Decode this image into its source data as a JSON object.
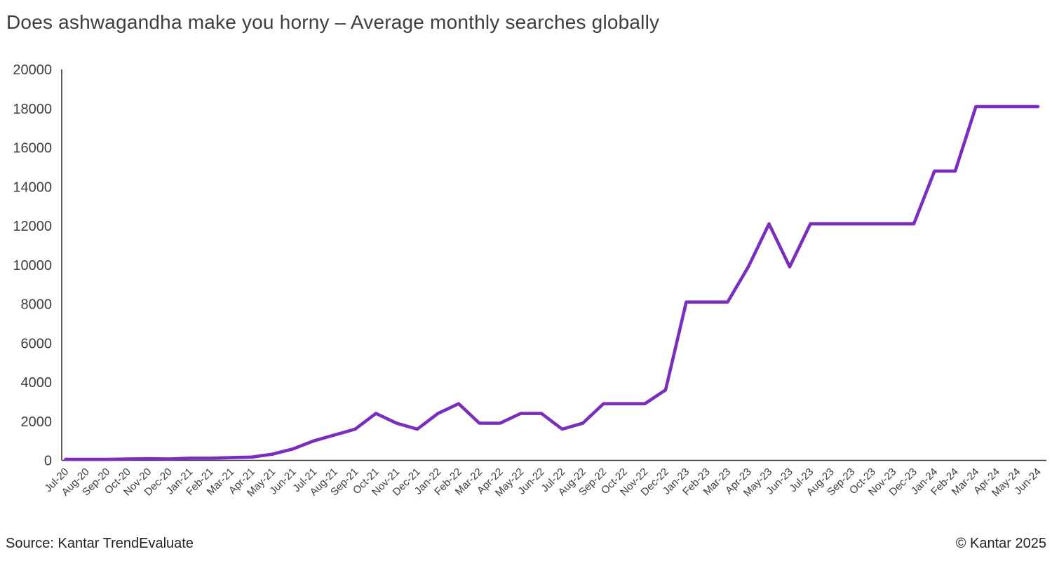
{
  "title": "Does ashwagandha make you horny – Average monthly searches globally",
  "footer": {
    "source": "Source: Kantar TrendEvaluate",
    "copyright": "© Kantar 2025"
  },
  "colors": {
    "line": "#7B2EBE",
    "axis": "#3a3a3c",
    "tick_text": "#3d3d3f",
    "title_text": "#3e3e40",
    "footer_text": "#232323",
    "background": "#ffffff"
  },
  "chart_data": {
    "type": "line",
    "title": "Does ashwagandha make you horny – Average monthly searches globally",
    "xlabel": "",
    "ylabel": "",
    "ylim": [
      0,
      20000
    ],
    "ytick_interval": 2000,
    "grid": false,
    "legend": false,
    "series_name": "Average monthly searches globally",
    "categories": [
      "Jul-20",
      "Aug-20",
      "Sep-20",
      "Oct-20",
      "Nov-20",
      "Dec-20",
      "Jan-21",
      "Feb-21",
      "Mar-21",
      "Apr-21",
      "May-21",
      "Jun-21",
      "Jul-21",
      "Aug-21",
      "Sep-21",
      "Oct-21",
      "Nov-21",
      "Dec-21",
      "Jan-22",
      "Feb-22",
      "Mar-22",
      "Apr-22",
      "May-22",
      "Jun-22",
      "Jul-22",
      "Aug-22",
      "Sep-22",
      "Oct-22",
      "Nov-22",
      "Dec-22",
      "Jan-23",
      "Feb-23",
      "Mar-23",
      "Apr-23",
      "May-23",
      "Jun-23",
      "Jul-23",
      "Aug-23",
      "Sep-23",
      "Oct-23",
      "Nov-23",
      "Dec-23",
      "Jan-24",
      "Feb-24",
      "Mar-24",
      "Apr-24",
      "May-24",
      "Jun-24"
    ],
    "values": [
      50,
      50,
      50,
      70,
      90,
      70,
      110,
      110,
      140,
      170,
      320,
      590,
      1000,
      1300,
      1600,
      2400,
      1900,
      1600,
      2400,
      2900,
      1900,
      1900,
      2400,
      2400,
      1600,
      1900,
      2900,
      2900,
      2900,
      3600,
      8100,
      8100,
      8100,
      9900,
      12100,
      9900,
      12100,
      12100,
      12100,
      12100,
      12100,
      12100,
      14800,
      14800,
      18100,
      18100,
      18100,
      18100
    ]
  }
}
